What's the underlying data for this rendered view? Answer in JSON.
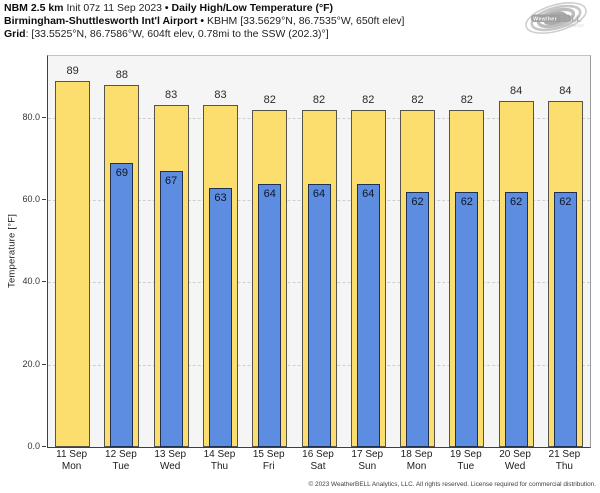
{
  "header": {
    "line1": {
      "model": "NBM 2.5 km",
      "init": "Init 07z 11 Sep 2023",
      "bullet": "•",
      "title": "Daily High/Low Temperature (°F)"
    },
    "line2": {
      "station": "Birmingham-Shuttlesworth Int'l Airport",
      "bullet": "•",
      "detail": "KBHM [33.5629°N, 86.7535°W, 650ft elev]"
    },
    "line3": {
      "label": "Grid",
      "detail": ": [33.5525°N, 86.7586°W, 604ft elev, 0.78mi to the SSW (202.3)°]"
    }
  },
  "logo": {
    "text_weather": "Weather",
    "text_bell": "BELL",
    "subtext": "Analytics LLC"
  },
  "chart_data": {
    "type": "bar",
    "title": "Daily High/Low Temperature (°F)",
    "categories": [
      {
        "date": "11 Sep",
        "day": "Mon"
      },
      {
        "date": "12 Sep",
        "day": "Tue"
      },
      {
        "date": "13 Sep",
        "day": "Wed"
      },
      {
        "date": "14 Sep",
        "day": "Thu"
      },
      {
        "date": "15 Sep",
        "day": "Fri"
      },
      {
        "date": "16 Sep",
        "day": "Sat"
      },
      {
        "date": "17 Sep",
        "day": "Sun"
      },
      {
        "date": "18 Sep",
        "day": "Mon"
      },
      {
        "date": "19 Sep",
        "day": "Tue"
      },
      {
        "date": "20 Sep",
        "day": "Wed"
      },
      {
        "date": "21 Sep",
        "day": "Thu"
      }
    ],
    "series": [
      {
        "name": "Daily High",
        "color": "#fbde6e",
        "values": [
          89,
          88,
          83,
          83,
          82,
          82,
          82,
          82,
          82,
          84,
          84
        ]
      },
      {
        "name": "Daily Low",
        "color": "#5c8de0",
        "values": [
          null,
          69,
          67,
          63,
          64,
          64,
          64,
          62,
          62,
          62,
          62
        ]
      }
    ],
    "xlabel": "",
    "ylabel": "Temperature [°F]",
    "ylim": [
      0,
      95
    ],
    "yticks": [
      "0.0",
      "20.0",
      "40.0",
      "60.0",
      "80.0"
    ],
    "grid": "horizontal-dashed",
    "legend": "none"
  },
  "footer": {
    "copyright": "© 2023 WeatherBELL Analytics, LLC. All rights reserved. License required for commercial distribution."
  }
}
